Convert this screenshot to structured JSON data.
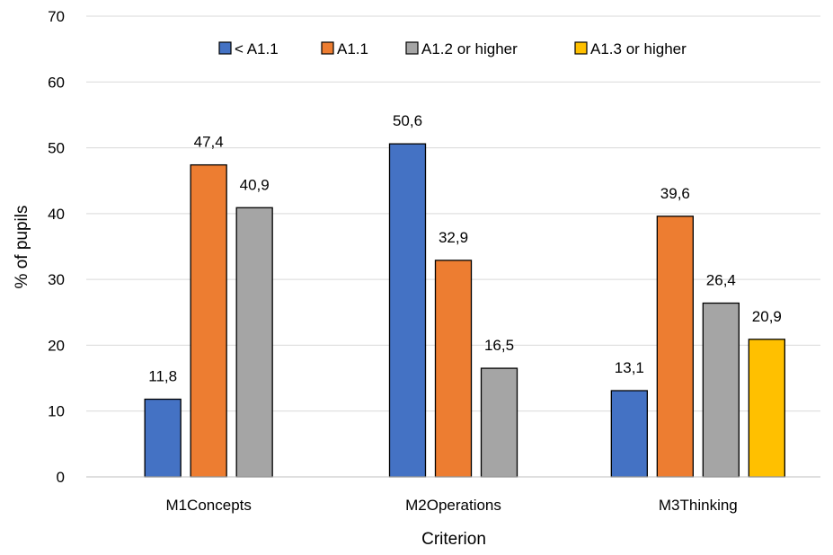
{
  "chart_data": {
    "type": "bar",
    "title": "",
    "xlabel": "Criterion",
    "ylabel": "% of pupils",
    "ylim": [
      0,
      70
    ],
    "yticks": [
      0,
      10,
      20,
      30,
      40,
      50,
      60,
      70
    ],
    "grid": true,
    "legend_position": "top",
    "categories": [
      "M1Concepts",
      "M2Operations",
      "M3Thinking"
    ],
    "series": [
      {
        "name": "< A1.1",
        "color": "#4472C4",
        "values": [
          11.8,
          50.6,
          13.1
        ],
        "labels": [
          "11,8",
          "50,6",
          "13,1"
        ]
      },
      {
        "name": "A1.1",
        "color": "#ED7D31",
        "values": [
          47.4,
          32.9,
          39.6
        ],
        "labels": [
          "47,4",
          "32,9",
          "39,6"
        ]
      },
      {
        "name": "A1.2 or higher",
        "color": "#A5A5A5",
        "values": [
          40.9,
          16.5,
          26.4
        ],
        "labels": [
          "40,9",
          "16,5",
          "26,4"
        ]
      },
      {
        "name": "A1.3 or higher",
        "color": "#FFC000",
        "values": [
          null,
          null,
          20.9
        ],
        "labels": [
          null,
          null,
          "20,9"
        ]
      }
    ]
  }
}
